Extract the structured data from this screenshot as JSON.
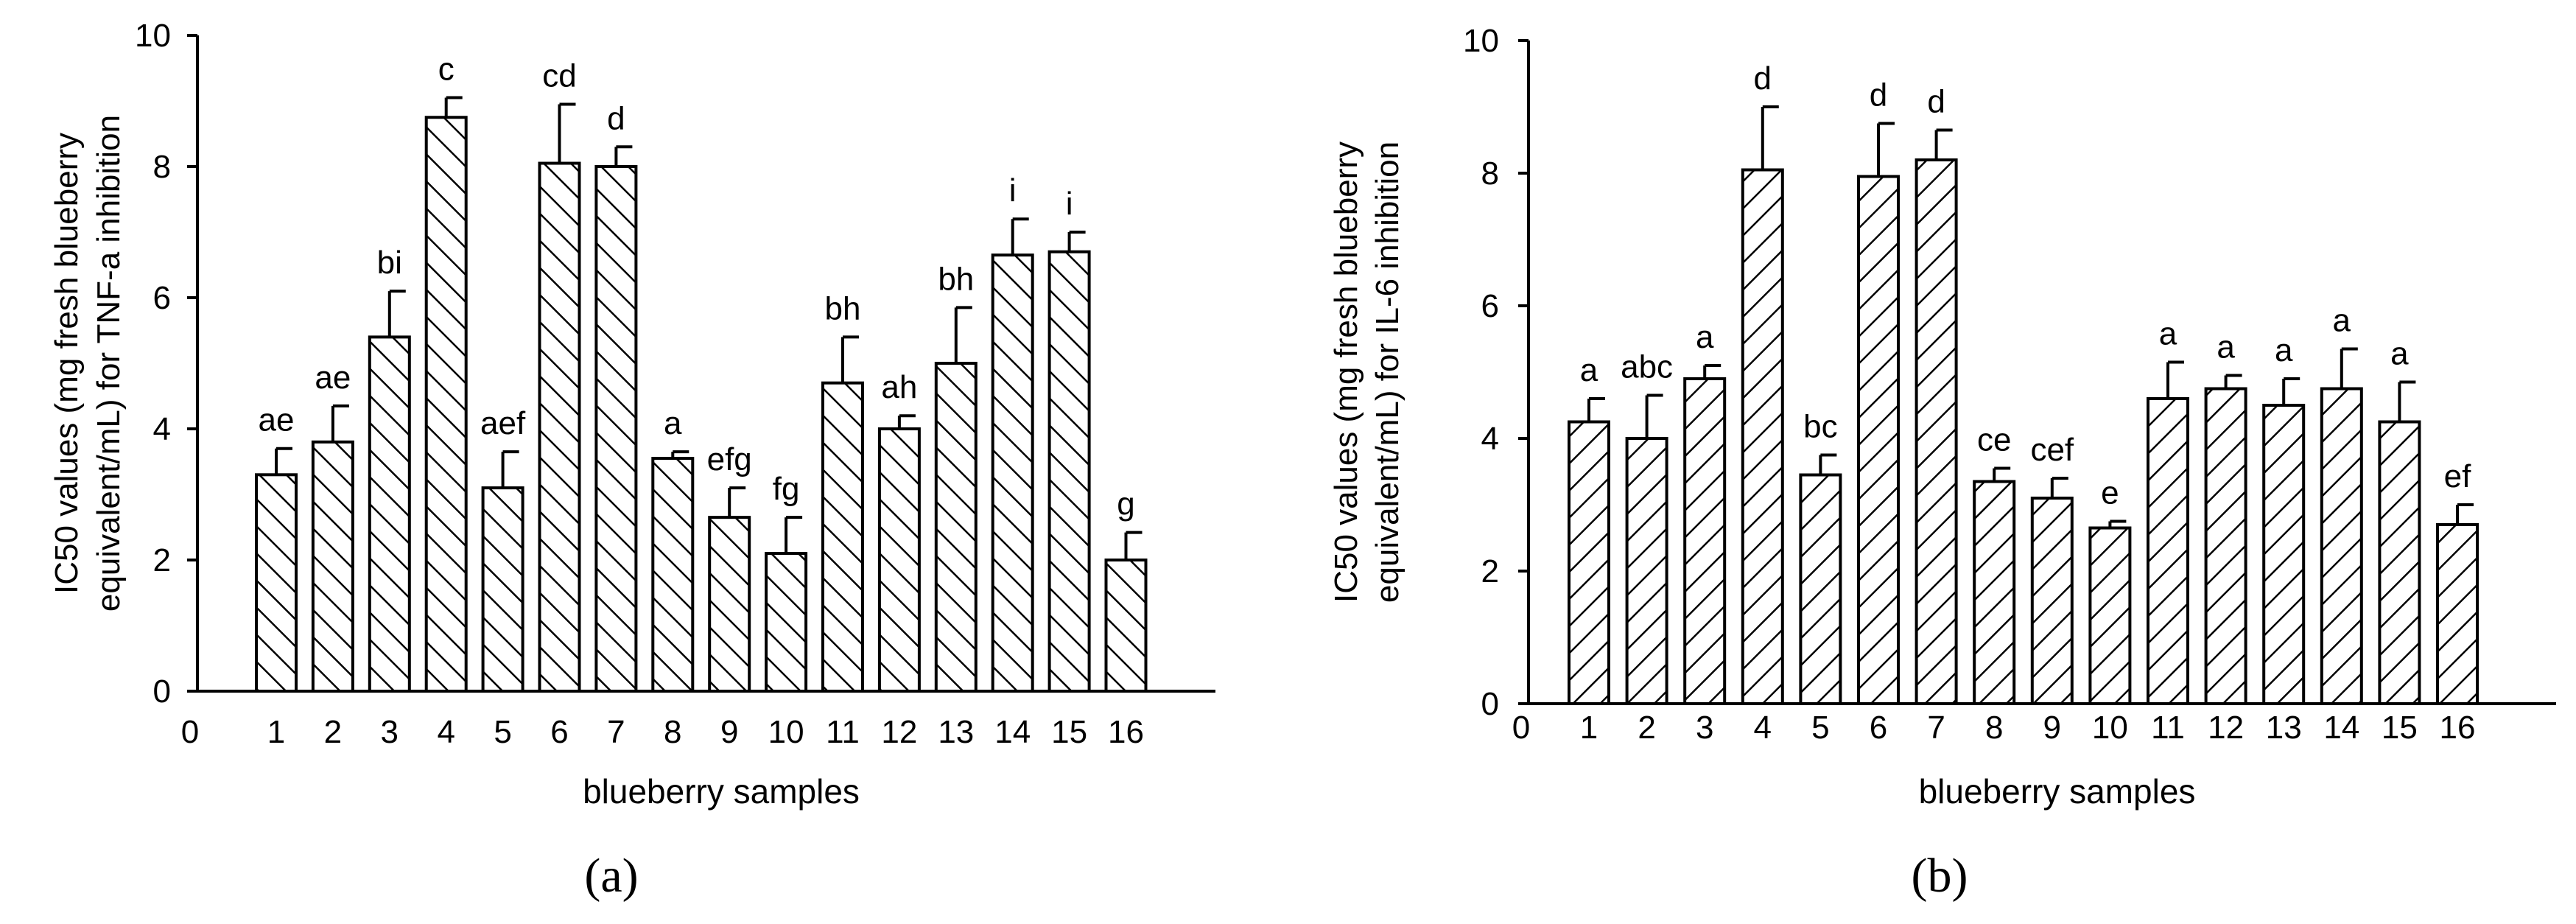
{
  "figure": {
    "panel_labels": [
      "(a)",
      "(b)"
    ]
  },
  "colors": {
    "bar_outline": "#000000",
    "hatch": "#000000",
    "background": "#ffffff"
  },
  "chart_data": [
    {
      "type": "bar",
      "panel": "(a)",
      "hatch_direction": "backslash",
      "xlabel": "blueberry samples",
      "ylabel_lines": [
        "IC50 values (mg fresh blueberry",
        "equivalent/mL) for TNF-a  inhibition"
      ],
      "ylim": [
        0,
        10
      ],
      "yticks": [
        0,
        2,
        4,
        6,
        8,
        10
      ],
      "x_zero_tick": "0",
      "categories": [
        "1",
        "2",
        "3",
        "4",
        "5",
        "6",
        "7",
        "8",
        "9",
        "10",
        "11",
        "12",
        "13",
        "14",
        "15",
        "16"
      ],
      "values": [
        3.3,
        3.8,
        5.4,
        8.75,
        3.1,
        8.05,
        8.0,
        3.55,
        2.65,
        2.1,
        4.7,
        4.0,
        5.0,
        6.65,
        6.7,
        2.0
      ],
      "errors": [
        0.4,
        0.55,
        0.7,
        0.3,
        0.55,
        0.9,
        0.3,
        0.1,
        0.45,
        0.55,
        0.7,
        0.2,
        0.85,
        0.55,
        0.3,
        0.42
      ],
      "significance_labels": [
        "ae",
        "ae",
        "bi",
        "c",
        "aef",
        "cd",
        "d",
        "a",
        "efg",
        "fg",
        "bh",
        "ah",
        "bh",
        "i",
        "i",
        "g"
      ],
      "grid": false,
      "legend": "none"
    },
    {
      "type": "bar",
      "panel": "(b)",
      "hatch_direction": "slash",
      "xlabel": "blueberry samples",
      "ylabel_lines": [
        "IC50 values (mg fresh blueberry",
        "equivalent/mL) for IL-6 inhibition"
      ],
      "ylim": [
        0,
        10
      ],
      "yticks": [
        0,
        2,
        4,
        6,
        8,
        10
      ],
      "x_zero_tick": "0",
      "categories": [
        "1",
        "2",
        "3",
        "4",
        "5",
        "6",
        "7",
        "8",
        "9",
        "10",
        "11",
        "12",
        "13",
        "14",
        "15",
        "16"
      ],
      "values": [
        4.25,
        4.0,
        4.9,
        8.05,
        3.45,
        7.95,
        8.2,
        3.35,
        3.1,
        2.65,
        4.6,
        4.75,
        4.5,
        4.75,
        4.25,
        2.7
      ],
      "errors": [
        0.35,
        0.65,
        0.2,
        0.95,
        0.3,
        0.8,
        0.45,
        0.2,
        0.3,
        0.1,
        0.55,
        0.2,
        0.4,
        0.6,
        0.6,
        0.3
      ],
      "significance_labels": [
        "a",
        "abc",
        "a",
        "d",
        "bc",
        "d",
        "d",
        "ce",
        "cef",
        "e",
        "a",
        "a",
        "a",
        "a",
        "a",
        "ef"
      ],
      "grid": false,
      "legend": "none"
    }
  ]
}
